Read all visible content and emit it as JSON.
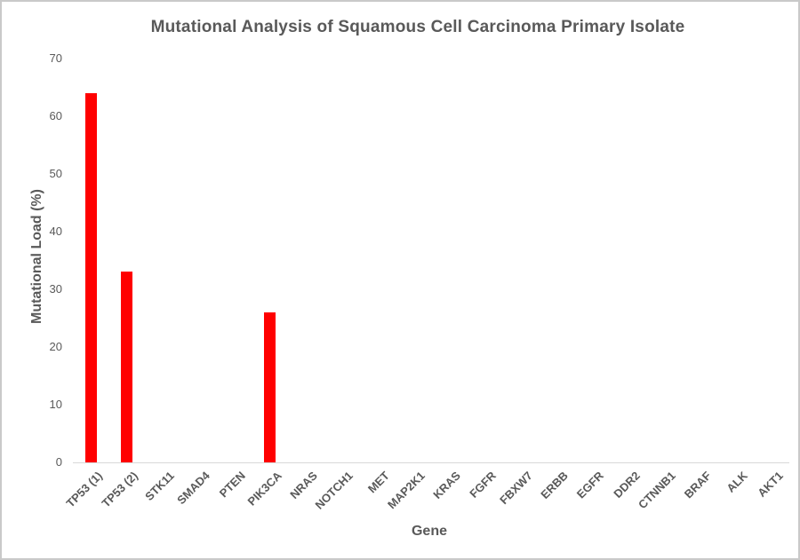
{
  "chart_data": {
    "type": "bar",
    "title": "Mutational Analysis of Squamous Cell Carcinoma Primary Isolate",
    "xlabel": "Gene",
    "ylabel": "Mutational Load (%)",
    "categories": [
      "TP53 (1)",
      "TP53 (2)",
      "STK11",
      "SMAD4",
      "PTEN",
      "PIK3CA",
      "NRAS",
      "NOTCH1",
      "MET",
      "MAP2K1",
      "KRAS",
      "FGFR",
      "FBXW7",
      "ERBB",
      "EGFR",
      "DDR2",
      "CTNNB1",
      "BRAF",
      "ALK",
      "AKT1"
    ],
    "values": [
      64,
      33,
      0,
      0,
      0,
      26,
      0,
      0,
      0,
      0,
      0,
      0,
      0,
      0,
      0,
      0,
      0,
      0,
      0,
      0
    ],
    "ylim": [
      0,
      70
    ],
    "yticks": [
      0,
      10,
      20,
      30,
      40,
      50,
      60,
      70
    ],
    "grid": false,
    "legend": null,
    "bar_color": "#ff0000",
    "text_color": "#595959",
    "axis_line_color": "#d9d9d9"
  }
}
